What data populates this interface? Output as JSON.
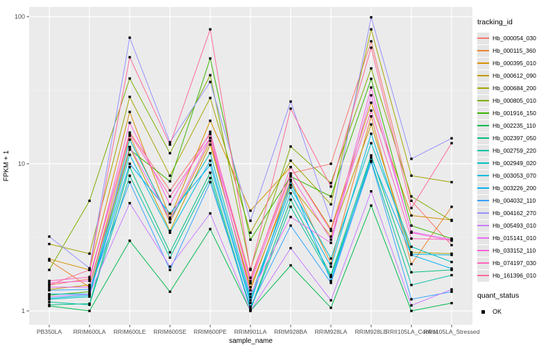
{
  "figure": {
    "panel_bg": "#ebebeb",
    "grid_major_color": "#ffffff",
    "grid_minor_color": "#ffffff",
    "tick_color": "#333333",
    "tick_label_color": "#4d4d4d",
    "axis_title_color": "#000000",
    "marker_color": "#000000"
  },
  "chart_data": {
    "type": "line",
    "title": "",
    "xlabel": "sample_name",
    "ylabel": "FPKM + 1",
    "y_scale": "log10",
    "ylim": [
      0.85,
      118
    ],
    "grid": "on",
    "legend_position": "right",
    "y_ticks": [
      {
        "label": "100",
        "value": 100
      },
      {
        "label": "10",
        "value": 10
      },
      {
        "label": "1",
        "value": 1
      }
    ],
    "y_minor_ticks": [
      31.62,
      3.162
    ],
    "categories": [
      "PB350LA",
      "RRIM600LA",
      "RRIM600LE",
      "RRIM600SE",
      "RRIM600PE",
      "RRIM901LA",
      "RRIM928BA",
      "RRIM928LA",
      "RRIM928LE",
      "RRII105LA_Control",
      "RRII105LA_Stressed"
    ],
    "marker": {
      "shape": "square",
      "color": "#000000",
      "size": 3.4
    },
    "legend": {
      "title": "tracking_id"
    },
    "legend2": {
      "title": "quant_status",
      "items": [
        {
          "label": "OK",
          "marker": "black-square"
        }
      ]
    },
    "series": [
      {
        "name": "Hb_000054_030",
        "color": "#F8766D",
        "values": [
          1.5,
          1.65,
          16.3,
          6.6,
          15.9,
          1.68,
          8.6,
          10.0,
          68,
          5.6,
          2.8
        ]
      },
      {
        "name": "Hb_000115_360",
        "color": "#EA8331",
        "values": [
          2.2,
          1.45,
          15.5,
          4.0,
          14.3,
          1.38,
          7.8,
          2.1,
          21,
          2.08,
          5.1
        ]
      },
      {
        "name": "Hb_000395_010",
        "color": "#D89000",
        "values": [
          2.25,
          1.9,
          22.5,
          4.3,
          19.6,
          4.8,
          9.5,
          3.6,
          26,
          4.45,
          4.15
        ]
      },
      {
        "name": "Hb_000612_090",
        "color": "#C09B00",
        "values": [
          1.4,
          1.5,
          13.0,
          3.5,
          13.5,
          1.45,
          7.2,
          3.2,
          18.5,
          2.5,
          2.45
        ]
      },
      {
        "name": "Hb_000684_200",
        "color": "#A3A500",
        "values": [
          2.85,
          2.45,
          28.5,
          8.3,
          28,
          3.4,
          10.5,
          5.3,
          82,
          8.3,
          7.5
        ]
      },
      {
        "name": "Hb_000805_010",
        "color": "#7CAE00",
        "values": [
          1.9,
          5.6,
          38,
          11.8,
          40,
          1.93,
          13.1,
          7.4,
          44.5,
          6.0,
          4.1
        ]
      },
      {
        "name": "Hb_001916_150",
        "color": "#39B600",
        "values": [
          1.28,
          1.35,
          12.5,
          7.6,
          52,
          3.05,
          8.2,
          6.0,
          37.8,
          3.8,
          3.1
        ]
      },
      {
        "name": "Hb_002235_110",
        "color": "#00BB4E",
        "values": [
          1.08,
          1.0,
          3.0,
          1.35,
          3.6,
          1.0,
          2.04,
          1.05,
          5.2,
          1.0,
          1.13
        ]
      },
      {
        "name": "Hb_002397_050",
        "color": "#00BF7D",
        "values": [
          1.1,
          1.12,
          9.5,
          2.5,
          8.7,
          1.03,
          5.7,
          1.75,
          11.4,
          1.83,
          1.9
        ]
      },
      {
        "name": "Hb_002759_220",
        "color": "#00C1A3",
        "values": [
          1.15,
          1.1,
          8.3,
          2.3,
          8.0,
          1.02,
          5.1,
          1.7,
          10.5,
          1.5,
          1.75
        ]
      },
      {
        "name": "Hb_002949_020",
        "color": "#00BFC4",
        "values": [
          1.2,
          1.25,
          14.6,
          4.2,
          11.8,
          1.24,
          6.9,
          2.27,
          13.8,
          2.73,
          2.15
        ]
      },
      {
        "name": "Hb_003053_070",
        "color": "#00BAE0",
        "values": [
          1.22,
          1.28,
          11.5,
          3.4,
          10.5,
          1.18,
          6.3,
          2.0,
          16,
          2.43,
          2.4
        ]
      },
      {
        "name": "Hb_003226_200",
        "color": "#00B0F6",
        "values": [
          1.3,
          1.3,
          10.0,
          4.6,
          9.8,
          1.13,
          7.6,
          1.6,
          11.0,
          2.4,
          1.94
        ]
      },
      {
        "name": "Hb_004032_110",
        "color": "#35A2FF",
        "values": [
          1.38,
          1.4,
          7.5,
          1.9,
          7.5,
          1.07,
          3.8,
          1.55,
          10.3,
          1.2,
          1.35
        ]
      },
      {
        "name": "Hb_004162_270",
        "color": "#9590FF",
        "values": [
          3.2,
          1.95,
          72,
          14,
          36,
          4.1,
          26.5,
          4.1,
          99,
          10.8,
          14.9
        ]
      },
      {
        "name": "Hb_005493_010",
        "color": "#C77CFF",
        "values": [
          1.25,
          1.3,
          5.4,
          2.0,
          4.6,
          1.0,
          2.67,
          1.18,
          6.5,
          1.09,
          1.4
        ]
      },
      {
        "name": "Hb_015141_010",
        "color": "#E76BF3",
        "values": [
          1.45,
          1.45,
          13,
          4.2,
          15,
          1.3,
          4.35,
          2.9,
          29.2,
          3.45,
          3.05
        ]
      },
      {
        "name": "Hb_033152_110",
        "color": "#FA62DB",
        "values": [
          1.55,
          1.6,
          19,
          5.3,
          16.5,
          1.54,
          8.4,
          3.05,
          33,
          3.4,
          3.0
        ]
      },
      {
        "name": "Hb_074197_030",
        "color": "#FF62BC",
        "values": [
          1.6,
          1.7,
          16,
          6.0,
          15,
          1.6,
          9.5,
          3.5,
          23,
          3.1,
          3.05
        ]
      },
      {
        "name": "Hb_161396_010",
        "color": "#FF6A98",
        "values": [
          1.5,
          1.9,
          53,
          13.5,
          82,
          1.9,
          23.7,
          7.0,
          61.5,
          5.0,
          13.8
        ]
      }
    ]
  }
}
